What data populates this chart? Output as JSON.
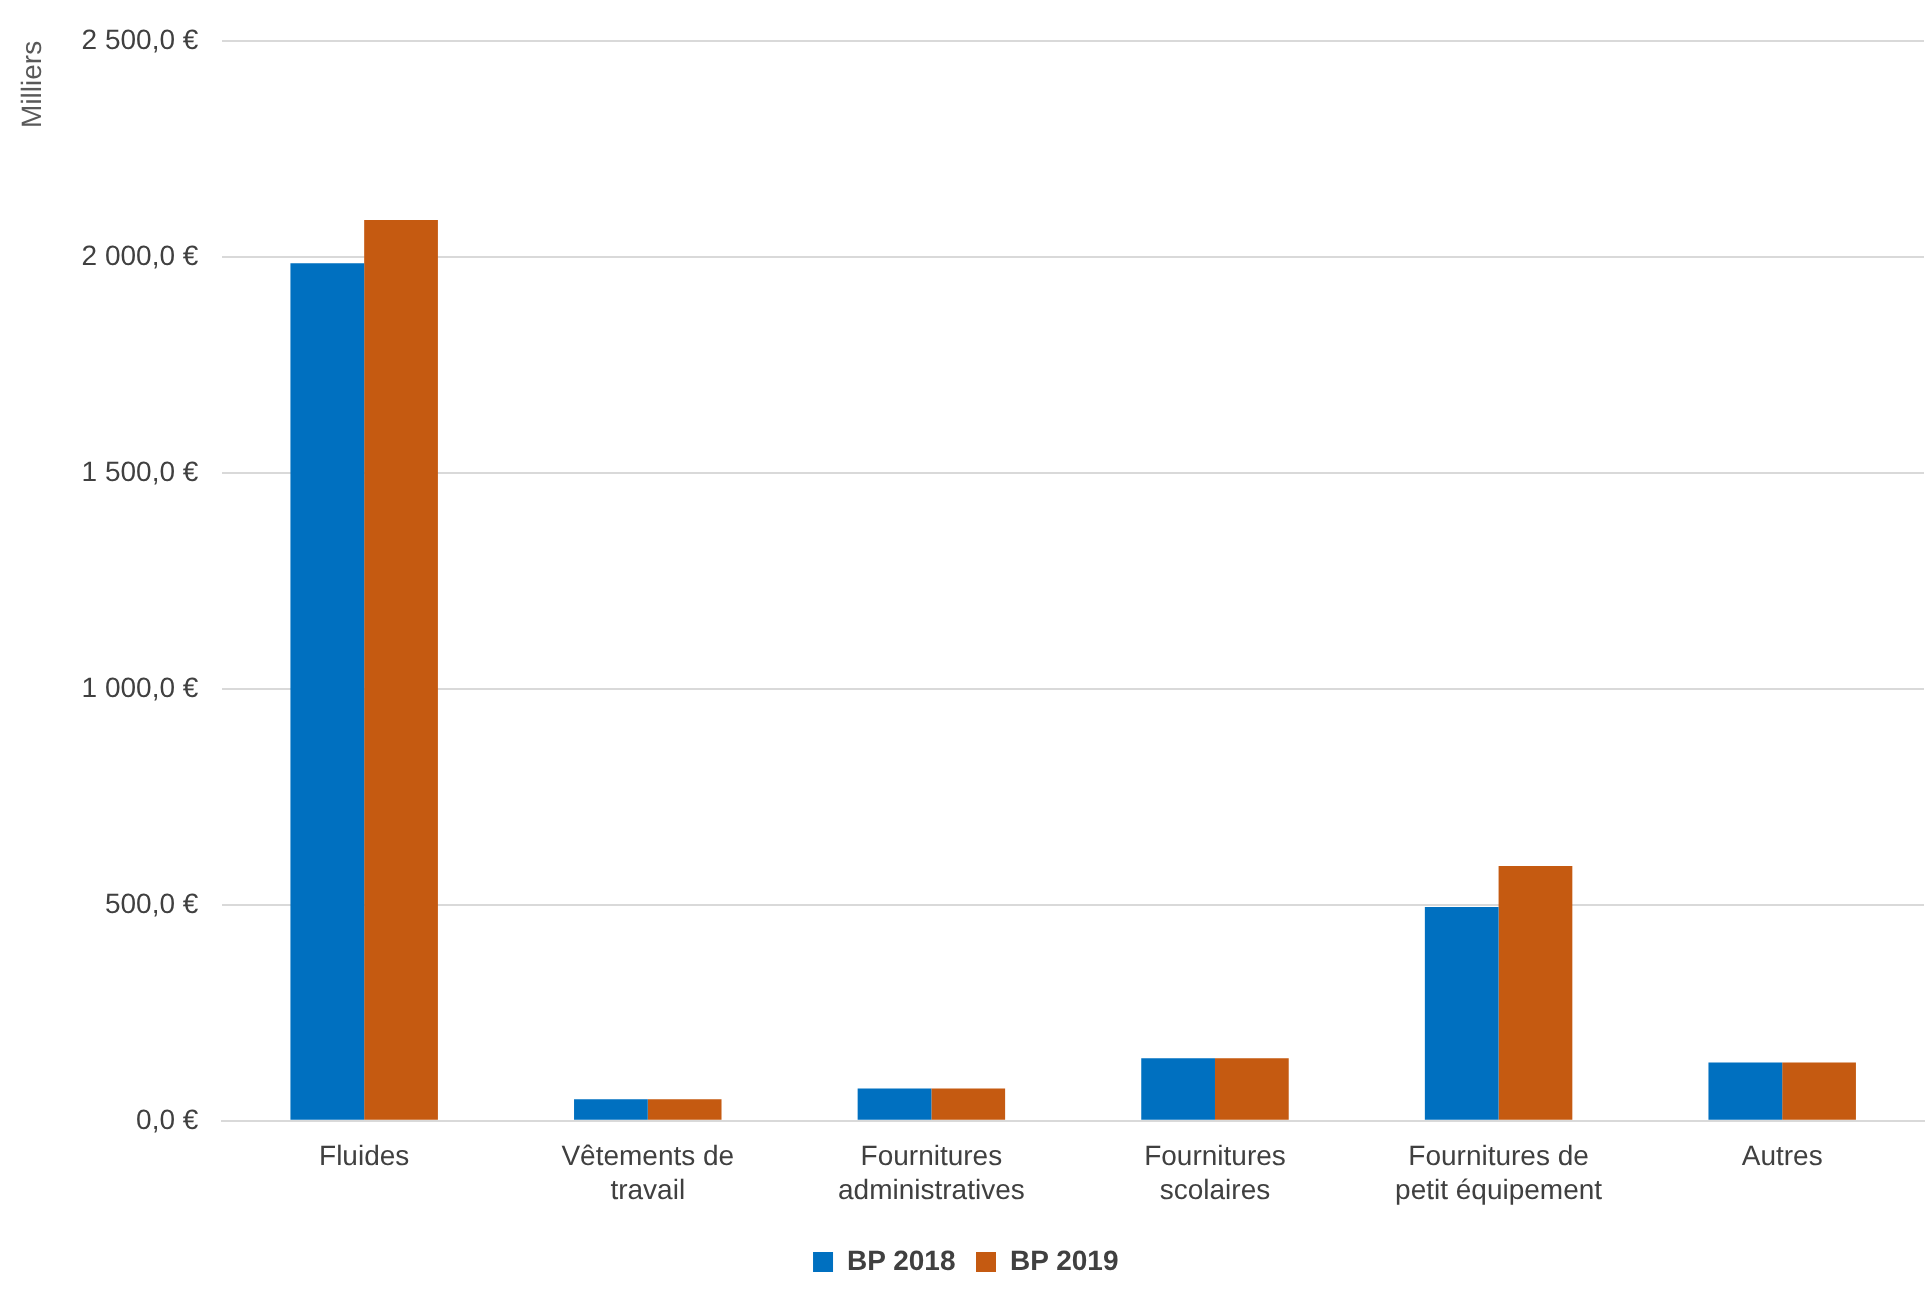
{
  "chart_data": {
    "type": "bar",
    "ylabel": "Milliers",
    "categories": [
      "Fluides",
      "Vêtements de travail",
      "Fournitures administratives",
      "Fournitures scolaires",
      "Fournitures de petit équipement",
      "Autres"
    ],
    "series": [
      {
        "name": "BP 2018",
        "color": "#0070c0",
        "values": [
          1985,
          50,
          75,
          145,
          495,
          135
        ]
      },
      {
        "name": "BP 2019",
        "color": "#c55a11",
        "values": [
          2085,
          50,
          75,
          145,
          590,
          135
        ]
      }
    ],
    "ylim": [
      0,
      2500
    ],
    "yticks": [
      {
        "value": 0,
        "label": "0,0 €"
      },
      {
        "value": 500,
        "label": "500,0 €"
      },
      {
        "value": 1000,
        "label": "1 000,0 €"
      },
      {
        "value": 1500,
        "label": "1 500,0 €"
      },
      {
        "value": 2000,
        "label": "2 000,0 €"
      },
      {
        "value": 2500,
        "label": "2 500,0 €"
      }
    ],
    "grid": "y",
    "legend": "bottom"
  }
}
